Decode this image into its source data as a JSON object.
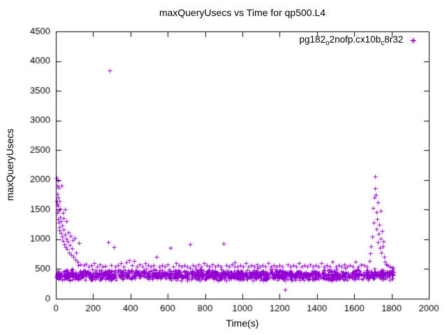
{
  "chart": {
    "title": "maxQueryUsecs vs Time for qp500.L4",
    "xlabel": "Time(s)",
    "ylabel": "maxQueryUsecs",
    "legend": {
      "p1": "pg182",
      "s1": "o",
      "p2": "2nofp.cx10b",
      "s2": "c",
      "p3": "8r32",
      "marker": "+"
    }
  },
  "chart_data": {
    "type": "scatter",
    "title": "maxQueryUsecs vs Time for qp500.L4",
    "xlabel": "Time(s)",
    "ylabel": "maxQueryUsecs",
    "xlim": [
      0,
      2000
    ],
    "ylim": [
      0,
      4500
    ],
    "xticks": [
      0,
      200,
      400,
      600,
      800,
      1000,
      1200,
      1400,
      1600,
      1800,
      2000
    ],
    "yticks": [
      0,
      500,
      1000,
      1500,
      2000,
      2500,
      3000,
      3500,
      4000,
      4500
    ],
    "grid": false,
    "legend_position": "top-right-inside",
    "series": [
      {
        "name": "pg182_o2nofp.cx10b_c8r32",
        "marker": "plus",
        "color": "#9400d3",
        "feature_points": [
          [
            3,
            380
          ],
          [
            4,
            1650
          ],
          [
            5,
            2030
          ],
          [
            6,
            1900
          ],
          [
            7,
            1600
          ],
          [
            8,
            1760
          ],
          [
            9,
            1450
          ],
          [
            10,
            1980
          ],
          [
            11,
            1700
          ],
          [
            12,
            1560
          ],
          [
            13,
            1340
          ],
          [
            14,
            1870
          ],
          [
            15,
            1280
          ],
          [
            16,
            1480
          ],
          [
            17,
            1200
          ],
          [
            18,
            1640
          ],
          [
            20,
            1150
          ],
          [
            22,
            1380
          ],
          [
            24,
            1520
          ],
          [
            26,
            1100
          ],
          [
            28,
            1300
          ],
          [
            30,
            1900
          ],
          [
            32,
            1050
          ],
          [
            34,
            1230
          ],
          [
            36,
            1440
          ],
          [
            38,
            980
          ],
          [
            40,
            1160
          ],
          [
            42,
            1350
          ],
          [
            45,
            920
          ],
          [
            48,
            1080
          ],
          [
            50,
            1500
          ],
          [
            52,
            870
          ],
          [
            55,
            1010
          ],
          [
            58,
            1300
          ],
          [
            60,
            830
          ],
          [
            63,
            960
          ],
          [
            66,
            1120
          ],
          [
            70,
            780
          ],
          [
            74,
            900
          ],
          [
            78,
            1060
          ],
          [
            82,
            740
          ],
          [
            86,
            850
          ],
          [
            90,
            990
          ],
          [
            95,
            700
          ],
          [
            100,
            1020
          ],
          [
            105,
            660
          ],
          [
            110,
            780
          ],
          [
            115,
            620
          ],
          [
            120,
            560
          ],
          [
            125,
            940
          ],
          [
            130,
            580
          ],
          [
            288,
            3840
          ],
          [
            150,
            560
          ],
          [
            160,
            590
          ],
          [
            175,
            545
          ],
          [
            190,
            565
          ],
          [
            205,
            600
          ],
          [
            220,
            545
          ],
          [
            235,
            570
          ],
          [
            250,
            540
          ],
          [
            265,
            555
          ],
          [
            280,
            950
          ],
          [
            295,
            560
          ],
          [
            310,
            870
          ],
          [
            320,
            545
          ],
          [
            335,
            565
          ],
          [
            350,
            600
          ],
          [
            365,
            545
          ],
          [
            380,
            610
          ],
          [
            395,
            650
          ],
          [
            410,
            560
          ],
          [
            420,
            640
          ],
          [
            435,
            545
          ],
          [
            450,
            580
          ],
          [
            465,
            545
          ],
          [
            480,
            600
          ],
          [
            495,
            560
          ],
          [
            510,
            545
          ],
          [
            525,
            565
          ],
          [
            540,
            700
          ],
          [
            555,
            545
          ],
          [
            570,
            560
          ],
          [
            585,
            545
          ],
          [
            600,
            580
          ],
          [
            615,
            860
          ],
          [
            630,
            545
          ],
          [
            645,
            600
          ],
          [
            660,
            560
          ],
          [
            675,
            545
          ],
          [
            690,
            565
          ],
          [
            705,
            545
          ],
          [
            720,
            920
          ],
          [
            735,
            560
          ],
          [
            750,
            545
          ],
          [
            765,
            580
          ],
          [
            780,
            545
          ],
          [
            795,
            600
          ],
          [
            810,
            560
          ],
          [
            825,
            545
          ],
          [
            840,
            580
          ],
          [
            855,
            545
          ],
          [
            870,
            565
          ],
          [
            885,
            545
          ],
          [
            900,
            930
          ],
          [
            915,
            560
          ],
          [
            930,
            545
          ],
          [
            945,
            580
          ],
          [
            960,
            610
          ],
          [
            975,
            545
          ],
          [
            990,
            560
          ],
          [
            1005,
            545
          ],
          [
            1020,
            600
          ],
          [
            1035,
            545
          ],
          [
            1050,
            565
          ],
          [
            1065,
            545
          ],
          [
            1080,
            580
          ],
          [
            1095,
            545
          ],
          [
            1110,
            560
          ],
          [
            1125,
            545
          ],
          [
            1140,
            600
          ],
          [
            1155,
            545
          ],
          [
            1170,
            565
          ],
          [
            1185,
            545
          ],
          [
            1200,
            560
          ],
          [
            1215,
            545
          ],
          [
            1230,
            150
          ],
          [
            1245,
            580
          ],
          [
            1260,
            545
          ],
          [
            1275,
            560
          ],
          [
            1290,
            545
          ],
          [
            1305,
            600
          ],
          [
            1320,
            545
          ],
          [
            1335,
            565
          ],
          [
            1350,
            545
          ],
          [
            1365,
            580
          ],
          [
            1380,
            545
          ],
          [
            1395,
            560
          ],
          [
            1410,
            545
          ],
          [
            1425,
            600
          ],
          [
            1440,
            545
          ],
          [
            1455,
            565
          ],
          [
            1470,
            545
          ],
          [
            1485,
            620
          ],
          [
            1500,
            545
          ],
          [
            1515,
            560
          ],
          [
            1530,
            545
          ],
          [
            1545,
            580
          ],
          [
            1560,
            545
          ],
          [
            1575,
            565
          ],
          [
            1590,
            545
          ],
          [
            1605,
            620
          ],
          [
            1620,
            545
          ],
          [
            1635,
            580
          ],
          [
            1650,
            560
          ],
          [
            1665,
            545
          ],
          [
            1680,
            640
          ],
          [
            1685,
            760
          ],
          [
            1690,
            880
          ],
          [
            1695,
            1040
          ],
          [
            1700,
            1530
          ],
          [
            1703,
            1280
          ],
          [
            1706,
            1700
          ],
          [
            1710,
            2060
          ],
          [
            1712,
            1860
          ],
          [
            1715,
            1750
          ],
          [
            1718,
            1460
          ],
          [
            1720,
            1180
          ],
          [
            1722,
            1340
          ],
          [
            1725,
            950
          ],
          [
            1728,
            1620
          ],
          [
            1730,
            1090
          ],
          [
            1733,
            1240
          ],
          [
            1736,
            860
          ],
          [
            1740,
            1480
          ],
          [
            1743,
            1010
          ],
          [
            1746,
            780
          ],
          [
            1750,
            1140
          ],
          [
            1753,
            880
          ],
          [
            1756,
            960
          ],
          [
            1760,
            700
          ],
          [
            1765,
            620
          ],
          [
            1770,
            580
          ],
          [
            1780,
            560
          ],
          [
            1790,
            545
          ],
          [
            1800,
            530
          ],
          [
            1810,
            520
          ]
        ],
        "baseline_band": {
          "description": "dense noisy baseline band of samples",
          "x_min": 2,
          "x_max": 1812,
          "y_min": 300,
          "y_max": 500,
          "y_center": 400,
          "stray_max": 600,
          "count": 1400,
          "seed": 7
        }
      }
    ]
  }
}
